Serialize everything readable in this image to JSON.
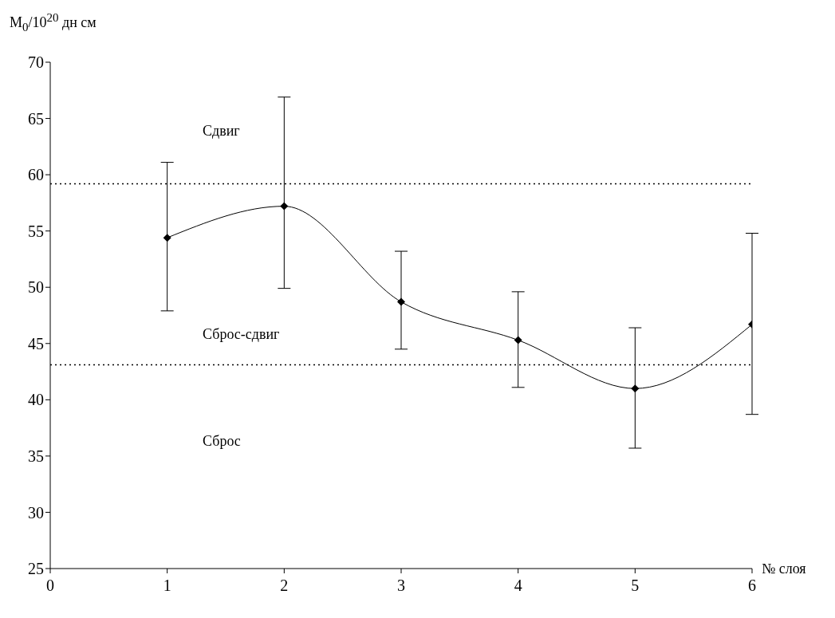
{
  "chart_data": {
    "type": "line",
    "ylabel": "M$_{0}$/10$^{20}$ дн см",
    "xlabel": "№ слоя",
    "x": [
      1,
      2,
      3,
      4,
      5,
      6
    ],
    "series": [
      {
        "color": "#000000",
        "values": [
          54.4,
          57.2,
          48.7,
          45.3,
          41.0,
          46.7
        ],
        "errors": [
          [
            47.9,
            61.1
          ],
          [
            49.9,
            66.9
          ],
          [
            44.5,
            53.2
          ],
          [
            41.1,
            49.6
          ],
          [
            35.7,
            46.4
          ],
          [
            38.7,
            54.8
          ]
        ]
      }
    ],
    "xlim": [
      0,
      6
    ],
    "xticks": [
      0,
      1,
      2,
      3,
      4,
      5,
      6
    ],
    "ylim": [
      25,
      70
    ],
    "yticks": [
      25,
      30,
      35,
      40,
      45,
      50,
      55,
      60,
      65,
      70
    ],
    "grid": false,
    "legend": false,
    "marker": "diamond",
    "line_style": "solid",
    "ref_lines": [
      {
        "axis": "y",
        "value": 59.2,
        "color": "#000000",
        "line_style": "dotted"
      },
      {
        "axis": "y",
        "value": 43.1,
        "color": "#000000",
        "line_style": "dotted"
      }
    ],
    "annotations": [
      "Сдвиг",
      "Сброс-сдвиг",
      "Сброс"
    ]
  }
}
